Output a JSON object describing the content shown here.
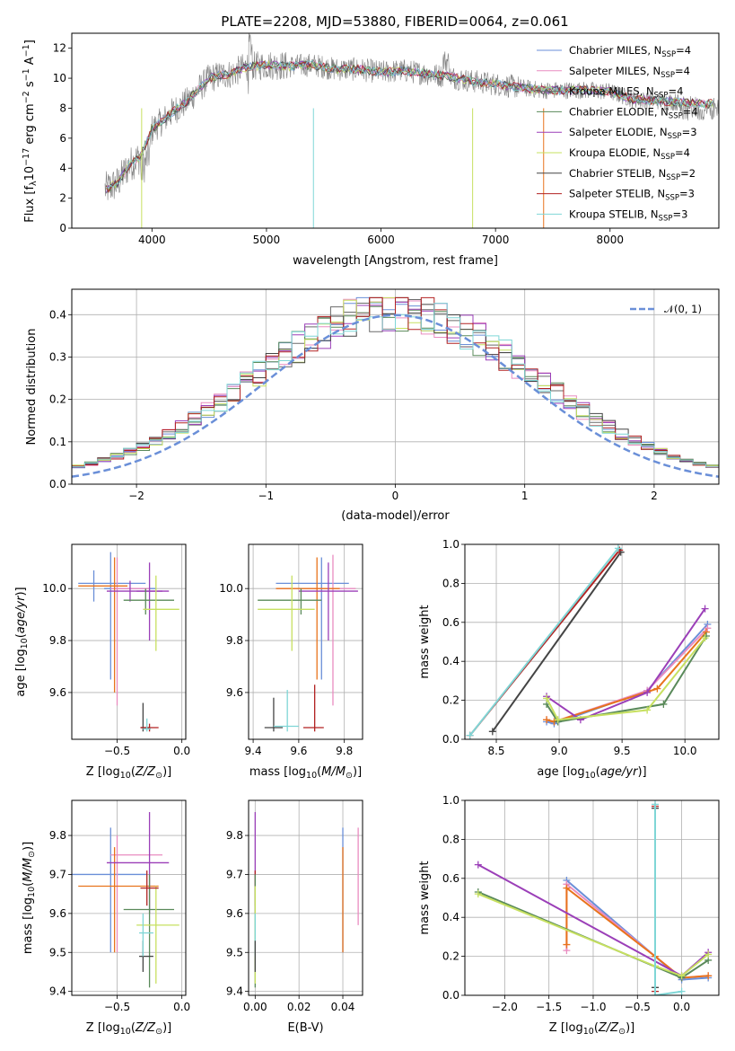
{
  "figure_title": "PLATE=2208, MJD=53880, FIBERID=0064, z=0.061",
  "colors": {
    "chabrier_miles": "#6a8fd8",
    "salpeter_miles": "#e98cc0",
    "kroupa_miles": "#6a6a6a",
    "chabrier_elodie": "#5a8a5a",
    "salpeter_elodie": "#9b3fb8",
    "kroupa_elodie": "#c7e060",
    "chabrier_stelib": "#444444",
    "salpeter_stelib": "#b22222",
    "kroupa_stelib": "#7fd6d6",
    "orange": "#e8731c"
  },
  "chart_data": [
    {
      "id": "spectrum",
      "type": "line",
      "xlabel": "wavelength [Angstrom, rest frame]",
      "ylabel": "Flux [f",
      "ylabel_parts": [
        "Flux [f",
        "λ",
        "10",
        "−17",
        " erg cm",
        "−2",
        " s",
        "−1",
        " A",
        "−1",
        "]"
      ],
      "xlim": [
        3300,
        8950
      ],
      "ylim": [
        0,
        13
      ],
      "xticks": [
        "4000",
        "5000",
        "6000",
        "7000",
        "8000"
      ],
      "xtick_values": [
        4000,
        5000,
        6000,
        7000,
        8000
      ],
      "yticks": [
        "0",
        "2",
        "4",
        "6",
        "8",
        "10",
        "12"
      ],
      "ytick_values": [
        0,
        2,
        4,
        6,
        8,
        10,
        12
      ],
      "continuum": {
        "x": [
          3600,
          3700,
          3800,
          3900,
          4000,
          4100,
          4200,
          4300,
          4400,
          4500,
          4600,
          4700,
          4800,
          5000,
          5200,
          5400,
          5600,
          5800,
          6000,
          6200,
          6400,
          6600,
          6800,
          7000,
          7200,
          7400,
          7600,
          7800,
          8000,
          8200,
          8400,
          8600,
          8800,
          8950
        ],
        "y": [
          2.6,
          3.0,
          4.2,
          4.8,
          6.6,
          7.2,
          7.9,
          8.4,
          9.2,
          10.0,
          10.2,
          10.3,
          10.7,
          10.9,
          10.8,
          10.9,
          10.6,
          10.6,
          10.4,
          10.5,
          10.3,
          10.1,
          9.8,
          9.6,
          9.4,
          9.2,
          9.2,
          9.2,
          9.1,
          8.6,
          8.5,
          8.4,
          8.3,
          8.3
        ]
      },
      "legend": [
        {
          "label": "Chabrier MILES, N",
          "sub": "SSP",
          "tail": "=4",
          "color": "#6a8fd8"
        },
        {
          "label": "Salpeter MILES, N",
          "sub": "SSP",
          "tail": "=4",
          "color": "#e98cc0"
        },
        {
          "label": "Kroupa MILES, N",
          "sub": "SSP",
          "tail": "=4",
          "color": "#6a6a6a"
        },
        {
          "label": "Chabrier ELODIE, N",
          "sub": "SSP",
          "tail": "=4",
          "color": "#5a8a5a"
        },
        {
          "label": "Salpeter ELODIE, N",
          "sub": "SSP",
          "tail": "=3",
          "color": "#9b3fb8"
        },
        {
          "label": "Kroupa ELODIE, N",
          "sub": "SSP",
          "tail": "=4",
          "color": "#c7e060"
        },
        {
          "label": "Chabrier STELIB, N",
          "sub": "SSP",
          "tail": "=2",
          "color": "#444444"
        },
        {
          "label": "Salpeter STELIB, N",
          "sub": "SSP",
          "tail": "=3",
          "color": "#b22222"
        },
        {
          "label": "Kroupa STELIB, N",
          "sub": "SSP",
          "tail": "=3",
          "color": "#7fd6d6"
        }
      ],
      "legend_placement": "top-right"
    },
    {
      "id": "residuals",
      "type": "histogram",
      "xlabel": "(data-model)/error",
      "ylabel": "Normed distribution",
      "xlim": [
        -2.5,
        2.5
      ],
      "ylim": [
        0,
        0.46
      ],
      "xticks": [
        "−2",
        "−1",
        "0",
        "1",
        "2"
      ],
      "xtick_values": [
        -2,
        -1,
        0,
        1,
        2
      ],
      "yticks": [
        "0.0",
        "0.1",
        "0.2",
        "0.3",
        "0.4"
      ],
      "ytick_values": [
        0,
        0.1,
        0.2,
        0.3,
        0.4
      ],
      "grid": true,
      "bin_width": 0.1,
      "bins_from": -2.5,
      "gaussian_label": "𝒩(0, 1)",
      "legend_placement": "top-right"
    },
    {
      "id": "age_vs_Z",
      "type": "errorbar",
      "xlabel": "Z [log",
      "ylabel": "age  [log",
      "xlim": [
        -0.85,
        0.03
      ],
      "ylim": [
        9.42,
        10.17
      ],
      "xticks": [
        "−0.5",
        "0.0"
      ],
      "xtick_values": [
        -0.5,
        0.0
      ],
      "yticks": [
        "9.6",
        "9.8",
        "10.0"
      ],
      "ytick_values": [
        9.6,
        9.8,
        10.0
      ],
      "grid": true,
      "points": [
        {
          "x": -0.68,
          "y": 10.02,
          "xlo": -0.8,
          "xhi": -0.28,
          "ylo": 9.95,
          "yhi": 10.07,
          "color": "#6a8fd8"
        },
        {
          "x": -0.55,
          "y": 10.0,
          "xlo": -0.6,
          "xhi": -0.2,
          "ylo": 9.65,
          "yhi": 10.14,
          "color": "#6a8fd8"
        },
        {
          "x": -0.5,
          "y": 10.0,
          "xlo": -0.55,
          "xhi": -0.25,
          "ylo": 9.55,
          "yhi": 10.12,
          "color": "#e98cc0"
        },
        {
          "x": -0.52,
          "y": 10.01,
          "xlo": -0.8,
          "xhi": -0.42,
          "ylo": 9.6,
          "yhi": 10.12,
          "color": "#e8731c"
        },
        {
          "x": -0.4,
          "y": 9.99,
          "xlo": -0.58,
          "xhi": -0.1,
          "ylo": 9.95,
          "yhi": 10.03,
          "color": "#9b3fb8"
        },
        {
          "x": -0.25,
          "y": 9.99,
          "xlo": -0.35,
          "xhi": -0.15,
          "ylo": 9.8,
          "yhi": 10.1,
          "color": "#9b3fb8"
        },
        {
          "x": -0.28,
          "y": 9.955,
          "xlo": -0.45,
          "xhi": -0.06,
          "ylo": 9.9,
          "yhi": 10.0,
          "color": "#5a8a5a"
        },
        {
          "x": -0.2,
          "y": 9.92,
          "xlo": -0.3,
          "xhi": -0.02,
          "ylo": 9.76,
          "yhi": 10.05,
          "color": "#c7e060"
        },
        {
          "x": -0.3,
          "y": 9.465,
          "xlo": -0.32,
          "xhi": -0.25,
          "ylo": 9.45,
          "yhi": 9.56,
          "color": "#444444"
        },
        {
          "x": -0.25,
          "y": 9.465,
          "xlo": -0.32,
          "xhi": -0.18,
          "ylo": 9.45,
          "yhi": 9.48,
          "color": "#b22222"
        },
        {
          "x": -0.27,
          "y": 9.46,
          "xlo": -0.3,
          "xhi": -0.24,
          "ylo": 9.45,
          "yhi": 9.5,
          "color": "#7fd6d6"
        }
      ]
    },
    {
      "id": "age_vs_mass",
      "type": "errorbar",
      "xlabel": "mass [log",
      "xlim": [
        9.38,
        9.88
      ],
      "ylim": [
        9.42,
        10.17
      ],
      "xticks": [
        "9.4",
        "9.6",
        "9.8"
      ],
      "xtick_values": [
        9.4,
        9.6,
        9.8
      ],
      "yticks": [
        "9.6",
        "9.8",
        "10.0"
      ],
      "ytick_values": [
        9.6,
        9.8,
        10.0
      ],
      "grid": true,
      "points": [
        {
          "x": 9.7,
          "y": 10.02,
          "xlo": 9.5,
          "xhi": 9.82,
          "ylo": 9.65,
          "yhi": 10.12,
          "color": "#6a8fd8"
        },
        {
          "x": 9.75,
          "y": 10.0,
          "xlo": 9.5,
          "xhi": 9.85,
          "ylo": 9.55,
          "yhi": 10.13,
          "color": "#e98cc0"
        },
        {
          "x": 9.68,
          "y": 10.0,
          "xlo": 9.5,
          "xhi": 9.78,
          "ylo": 9.65,
          "yhi": 10.12,
          "color": "#e8731c"
        },
        {
          "x": 9.73,
          "y": 9.99,
          "xlo": 9.6,
          "xhi": 9.86,
          "ylo": 9.8,
          "yhi": 10.1,
          "color": "#9b3fb8"
        },
        {
          "x": 9.61,
          "y": 9.955,
          "xlo": 9.42,
          "xhi": 9.7,
          "ylo": 9.9,
          "yhi": 10.0,
          "color": "#5a8a5a"
        },
        {
          "x": 9.57,
          "y": 9.92,
          "xlo": 9.42,
          "xhi": 9.67,
          "ylo": 9.76,
          "yhi": 10.05,
          "color": "#c7e060"
        },
        {
          "x": 9.49,
          "y": 9.465,
          "xlo": 9.45,
          "xhi": 9.53,
          "ylo": 9.45,
          "yhi": 9.58,
          "color": "#444444"
        },
        {
          "x": 9.67,
          "y": 9.465,
          "xlo": 9.62,
          "xhi": 9.71,
          "ylo": 9.45,
          "yhi": 9.63,
          "color": "#b22222"
        },
        {
          "x": 9.55,
          "y": 9.47,
          "xlo": 9.49,
          "xhi": 9.6,
          "ylo": 9.45,
          "yhi": 9.61,
          "color": "#7fd6d6"
        }
      ]
    },
    {
      "id": "weight_vs_age",
      "type": "line",
      "xlabel": "age  [log",
      "ylabel": "mass weight",
      "xlim": [
        8.25,
        10.27
      ],
      "ylim": [
        0,
        1
      ],
      "xticks": [
        "8.5",
        "9.0",
        "9.5",
        "10.0"
      ],
      "xtick_values": [
        8.5,
        9.0,
        9.5,
        10.0
      ],
      "yticks": [
        "0.0",
        "0.2",
        "0.4",
        "0.6",
        "0.8",
        "1.0"
      ],
      "ytick_values": [
        0,
        0.2,
        0.4,
        0.6,
        0.8,
        1.0
      ],
      "grid": true,
      "series": [
        {
          "color": "#6a8fd8",
          "x": [
            8.9,
            8.96,
            9.7,
            10.18
          ],
          "y": [
            0.09,
            0.08,
            0.25,
            0.59
          ]
        },
        {
          "color": "#e98cc0",
          "x": [
            8.9,
            8.96,
            9.7,
            10.18
          ],
          "y": [
            0.1,
            0.09,
            0.25,
            0.57
          ]
        },
        {
          "color": "#e8731c",
          "x": [
            8.9,
            8.96,
            9.78,
            10.17
          ],
          "y": [
            0.1,
            0.09,
            0.26,
            0.55
          ]
        },
        {
          "color": "#9b3fb8",
          "x": [
            8.9,
            9.17,
            9.7,
            10.16
          ],
          "y": [
            0.22,
            0.1,
            0.24,
            0.67
          ]
        },
        {
          "color": "#5a8a5a",
          "x": [
            8.9,
            8.99,
            9.83,
            10.17
          ],
          "y": [
            0.18,
            0.09,
            0.18,
            0.53
          ]
        },
        {
          "color": "#c7e060",
          "x": [
            8.9,
            8.99,
            9.7,
            10.16
          ],
          "y": [
            0.21,
            0.1,
            0.15,
            0.52
          ]
        },
        {
          "color": "#444444",
          "x": [
            8.47,
            9.49
          ],
          "y": [
            0.04,
            0.96
          ]
        },
        {
          "color": "#b22222",
          "x": [
            8.29,
            9.48
          ],
          "y": [
            0.02,
            0.97
          ]
        },
        {
          "color": "#7fd6d6",
          "x": [
            8.29,
            9.47
          ],
          "y": [
            0.02,
            0.98
          ]
        }
      ]
    },
    {
      "id": "mass_vs_Z",
      "type": "errorbar",
      "xlabel": "Z [log",
      "ylabel": "mass [log",
      "xlim": [
        -0.85,
        0.03
      ],
      "ylim": [
        9.39,
        9.89
      ],
      "xticks": [
        "−0.5",
        "0.0"
      ],
      "xtick_values": [
        -0.5,
        0.0
      ],
      "yticks": [
        "9.4",
        "9.5",
        "9.6",
        "9.7",
        "9.8"
      ],
      "ytick_values": [
        9.4,
        9.5,
        9.6,
        9.7,
        9.8
      ],
      "grid": true,
      "points": [
        {
          "x": -0.55,
          "y": 9.7,
          "xlo": -0.85,
          "xhi": -0.27,
          "ylo": 9.5,
          "yhi": 9.82,
          "color": "#6a8fd8"
        },
        {
          "x": -0.5,
          "y": 9.75,
          "xlo": -0.55,
          "xhi": -0.15,
          "ylo": 9.5,
          "yhi": 9.8,
          "color": "#e98cc0"
        },
        {
          "x": -0.52,
          "y": 9.67,
          "xlo": -0.8,
          "xhi": -0.18,
          "ylo": 9.5,
          "yhi": 9.77,
          "color": "#e8731c"
        },
        {
          "x": -0.25,
          "y": 9.73,
          "xlo": -0.58,
          "xhi": -0.1,
          "ylo": 9.6,
          "yhi": 9.86,
          "color": "#9b3fb8"
        },
        {
          "x": -0.25,
          "y": 9.61,
          "xlo": -0.45,
          "xhi": -0.06,
          "ylo": 9.41,
          "yhi": 9.7,
          "color": "#5a8a5a"
        },
        {
          "x": -0.2,
          "y": 9.57,
          "xlo": -0.35,
          "xhi": -0.02,
          "ylo": 9.42,
          "yhi": 9.67,
          "color": "#c7e060"
        },
        {
          "x": -0.3,
          "y": 9.49,
          "xlo": -0.33,
          "xhi": -0.22,
          "ylo": 9.45,
          "yhi": 9.53,
          "color": "#444444"
        },
        {
          "x": -0.27,
          "y": 9.665,
          "xlo": -0.32,
          "xhi": -0.18,
          "ylo": 9.62,
          "yhi": 9.71,
          "color": "#b22222"
        },
        {
          "x": -0.3,
          "y": 9.55,
          "xlo": -0.33,
          "xhi": -0.22,
          "ylo": 9.49,
          "yhi": 9.6,
          "color": "#7fd6d6"
        }
      ]
    },
    {
      "id": "mass_vs_EBV",
      "type": "errorbar",
      "xlabel": "E(B-V)",
      "xlim": [
        -0.003,
        0.049
      ],
      "ylim": [
        9.39,
        9.89
      ],
      "xticks": [
        "0.00",
        "0.02",
        "0.04"
      ],
      "xtick_values": [
        0.0,
        0.02,
        0.04
      ],
      "yticks": [
        "9.4",
        "9.5",
        "9.6",
        "9.7",
        "9.8"
      ],
      "ytick_values": [
        9.4,
        9.5,
        9.6,
        9.7,
        9.8
      ],
      "grid": true,
      "points": [
        {
          "x": 0.0,
          "y": 9.73,
          "ylo": 9.6,
          "yhi": 9.86,
          "color": "#9b3fb8"
        },
        {
          "x": 0.0,
          "y": 9.665,
          "ylo": 9.62,
          "yhi": 9.71,
          "color": "#b22222"
        },
        {
          "x": 0.0,
          "y": 9.61,
          "ylo": 9.41,
          "yhi": 9.7,
          "color": "#5a8a5a"
        },
        {
          "x": 0.0,
          "y": 9.57,
          "ylo": 9.42,
          "yhi": 9.67,
          "color": "#c7e060"
        },
        {
          "x": 0.0,
          "y": 9.55,
          "ylo": 9.49,
          "yhi": 9.6,
          "color": "#7fd6d6"
        },
        {
          "x": 0.0,
          "y": 9.49,
          "ylo": 9.45,
          "yhi": 9.53,
          "color": "#444444"
        },
        {
          "x": 0.04,
          "y": 9.7,
          "ylo": 9.5,
          "yhi": 9.82,
          "color": "#6a8fd8"
        },
        {
          "x": 0.04,
          "y": 9.67,
          "ylo": 9.5,
          "yhi": 9.77,
          "color": "#e8731c"
        },
        {
          "x": 0.047,
          "y": 9.75,
          "ylo": 9.57,
          "yhi": 9.82,
          "color": "#e98cc0"
        }
      ]
    },
    {
      "id": "weight_vs_Z",
      "type": "line",
      "xlabel": "Z [log",
      "ylabel": "mass weight",
      "xlim": [
        -2.45,
        0.42
      ],
      "ylim": [
        0,
        1
      ],
      "xticks": [
        "−2.0",
        "−1.5",
        "−1.0",
        "−0.5",
        "0.0"
      ],
      "xtick_values": [
        -2.0,
        -1.5,
        -1.0,
        -0.5,
        0.0
      ],
      "yticks": [
        "0.0",
        "0.2",
        "0.4",
        "0.6",
        "0.8",
        "1.0"
      ],
      "ytick_values": [
        0,
        0.2,
        0.4,
        0.6,
        0.8,
        1.0
      ],
      "grid": true,
      "series": [
        {
          "color": "#6a8fd8",
          "x": [
            -1.3,
            -0.3,
            0.0,
            0.3
          ],
          "y": [
            0.59,
            0.2,
            0.08,
            0.09
          ]
        },
        {
          "color": "#e98cc0",
          "x": [
            -1.3,
            -1.3,
            -0.3,
            0.0,
            0.3
          ],
          "y": [
            0.23,
            0.57,
            0.2,
            0.09,
            0.1
          ]
        },
        {
          "color": "#e8731c",
          "x": [
            -1.3,
            -1.3,
            -0.3,
            0.0,
            0.3
          ],
          "y": [
            0.26,
            0.55,
            0.2,
            0.09,
            0.1
          ]
        },
        {
          "color": "#9b3fb8",
          "x": [
            -2.3,
            0.0,
            0.3
          ],
          "y": [
            0.67,
            0.1,
            0.22
          ]
        },
        {
          "color": "#5a8a5a",
          "x": [
            -2.3,
            0.0,
            0.3
          ],
          "y": [
            0.53,
            0.09,
            0.18
          ]
        },
        {
          "color": "#c7e060",
          "x": [
            -2.3,
            -0.3,
            0.0,
            0.3
          ],
          "y": [
            0.52,
            0.15,
            0.1,
            0.21
          ]
        },
        {
          "color": "#444444",
          "x": [
            -0.3,
            -0.3
          ],
          "y": [
            0.04,
            0.96
          ]
        },
        {
          "color": "#b22222",
          "x": [
            -0.3,
            -0.3
          ],
          "y": [
            0.02,
            0.97
          ]
        },
        {
          "color": "#7fd6d6",
          "x": [
            -0.3,
            -0.3,
            0.0
          ],
          "y": [
            0.98,
            0.0,
            0.02
          ]
        }
      ]
    }
  ]
}
